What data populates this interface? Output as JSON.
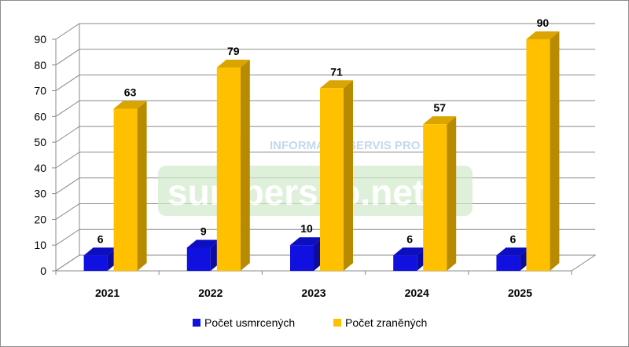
{
  "chart_data": {
    "type": "bar",
    "categories": [
      "2021",
      "2022",
      "2023",
      "2024",
      "2025"
    ],
    "series": [
      {
        "name": "Počet usmrcených",
        "values": [
          6,
          9,
          10,
          6,
          6
        ],
        "color": "#1010e0"
      },
      {
        "name": "Počet zraněných",
        "values": [
          63,
          79,
          71,
          57,
          90
        ],
        "color": "#ffc000"
      }
    ],
    "ylim": [
      0,
      90
    ],
    "yticks": [
      0,
      10,
      20,
      30,
      40,
      50,
      60,
      70,
      80,
      90
    ],
    "grid": true,
    "style": "3d",
    "legend_position": "bottom",
    "title": "",
    "xlabel": "",
    "ylabel": ""
  },
  "watermark": {
    "small_text": "INFORMAČNÍ SERVIS PRO VÁS",
    "big_text": "sumpersko.net"
  }
}
